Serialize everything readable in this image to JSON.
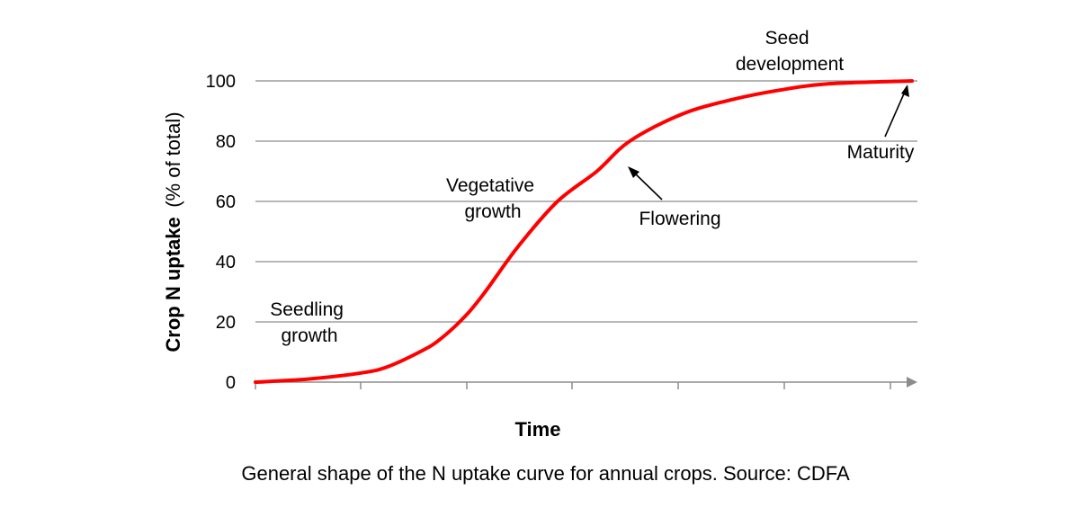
{
  "chart_data": {
    "type": "line",
    "title": "",
    "xlabel": "Time",
    "ylabel_bold": "Crop N uptake",
    "ylabel_rest": "(% of total)",
    "ylim": [
      0,
      100
    ],
    "yticks": [
      0,
      20,
      40,
      60,
      80,
      100
    ],
    "yticks_labels": [
      "0",
      "20",
      "40",
      "60",
      "80",
      "100"
    ],
    "grid": true,
    "legend": "none",
    "series": [
      {
        "color": "#ff0000",
        "x": [
          0,
          0.08,
          0.16,
          0.2,
          0.25,
          0.28,
          0.32,
          0.35,
          0.4,
          0.46,
          0.52,
          0.57,
          0.65,
          0.73,
          0.8,
          0.87,
          1.0
        ],
        "values": [
          0,
          1,
          3,
          5,
          10,
          14,
          22,
          30,
          45,
          60,
          70,
          80,
          89,
          94,
          97,
          99,
          100
        ]
      }
    ],
    "annotations": [
      {
        "lines": [
          "Seedling",
          "growth"
        ]
      },
      {
        "lines": [
          "Vegetative",
          "growth"
        ]
      },
      {
        "lines": [
          "Flowering"
        ]
      },
      {
        "lines": [
          "Seed",
          "development"
        ]
      },
      {
        "lines": [
          "Maturity"
        ]
      }
    ]
  },
  "caption": "General shape of the N uptake curve for annual crops. Source: CDFA"
}
